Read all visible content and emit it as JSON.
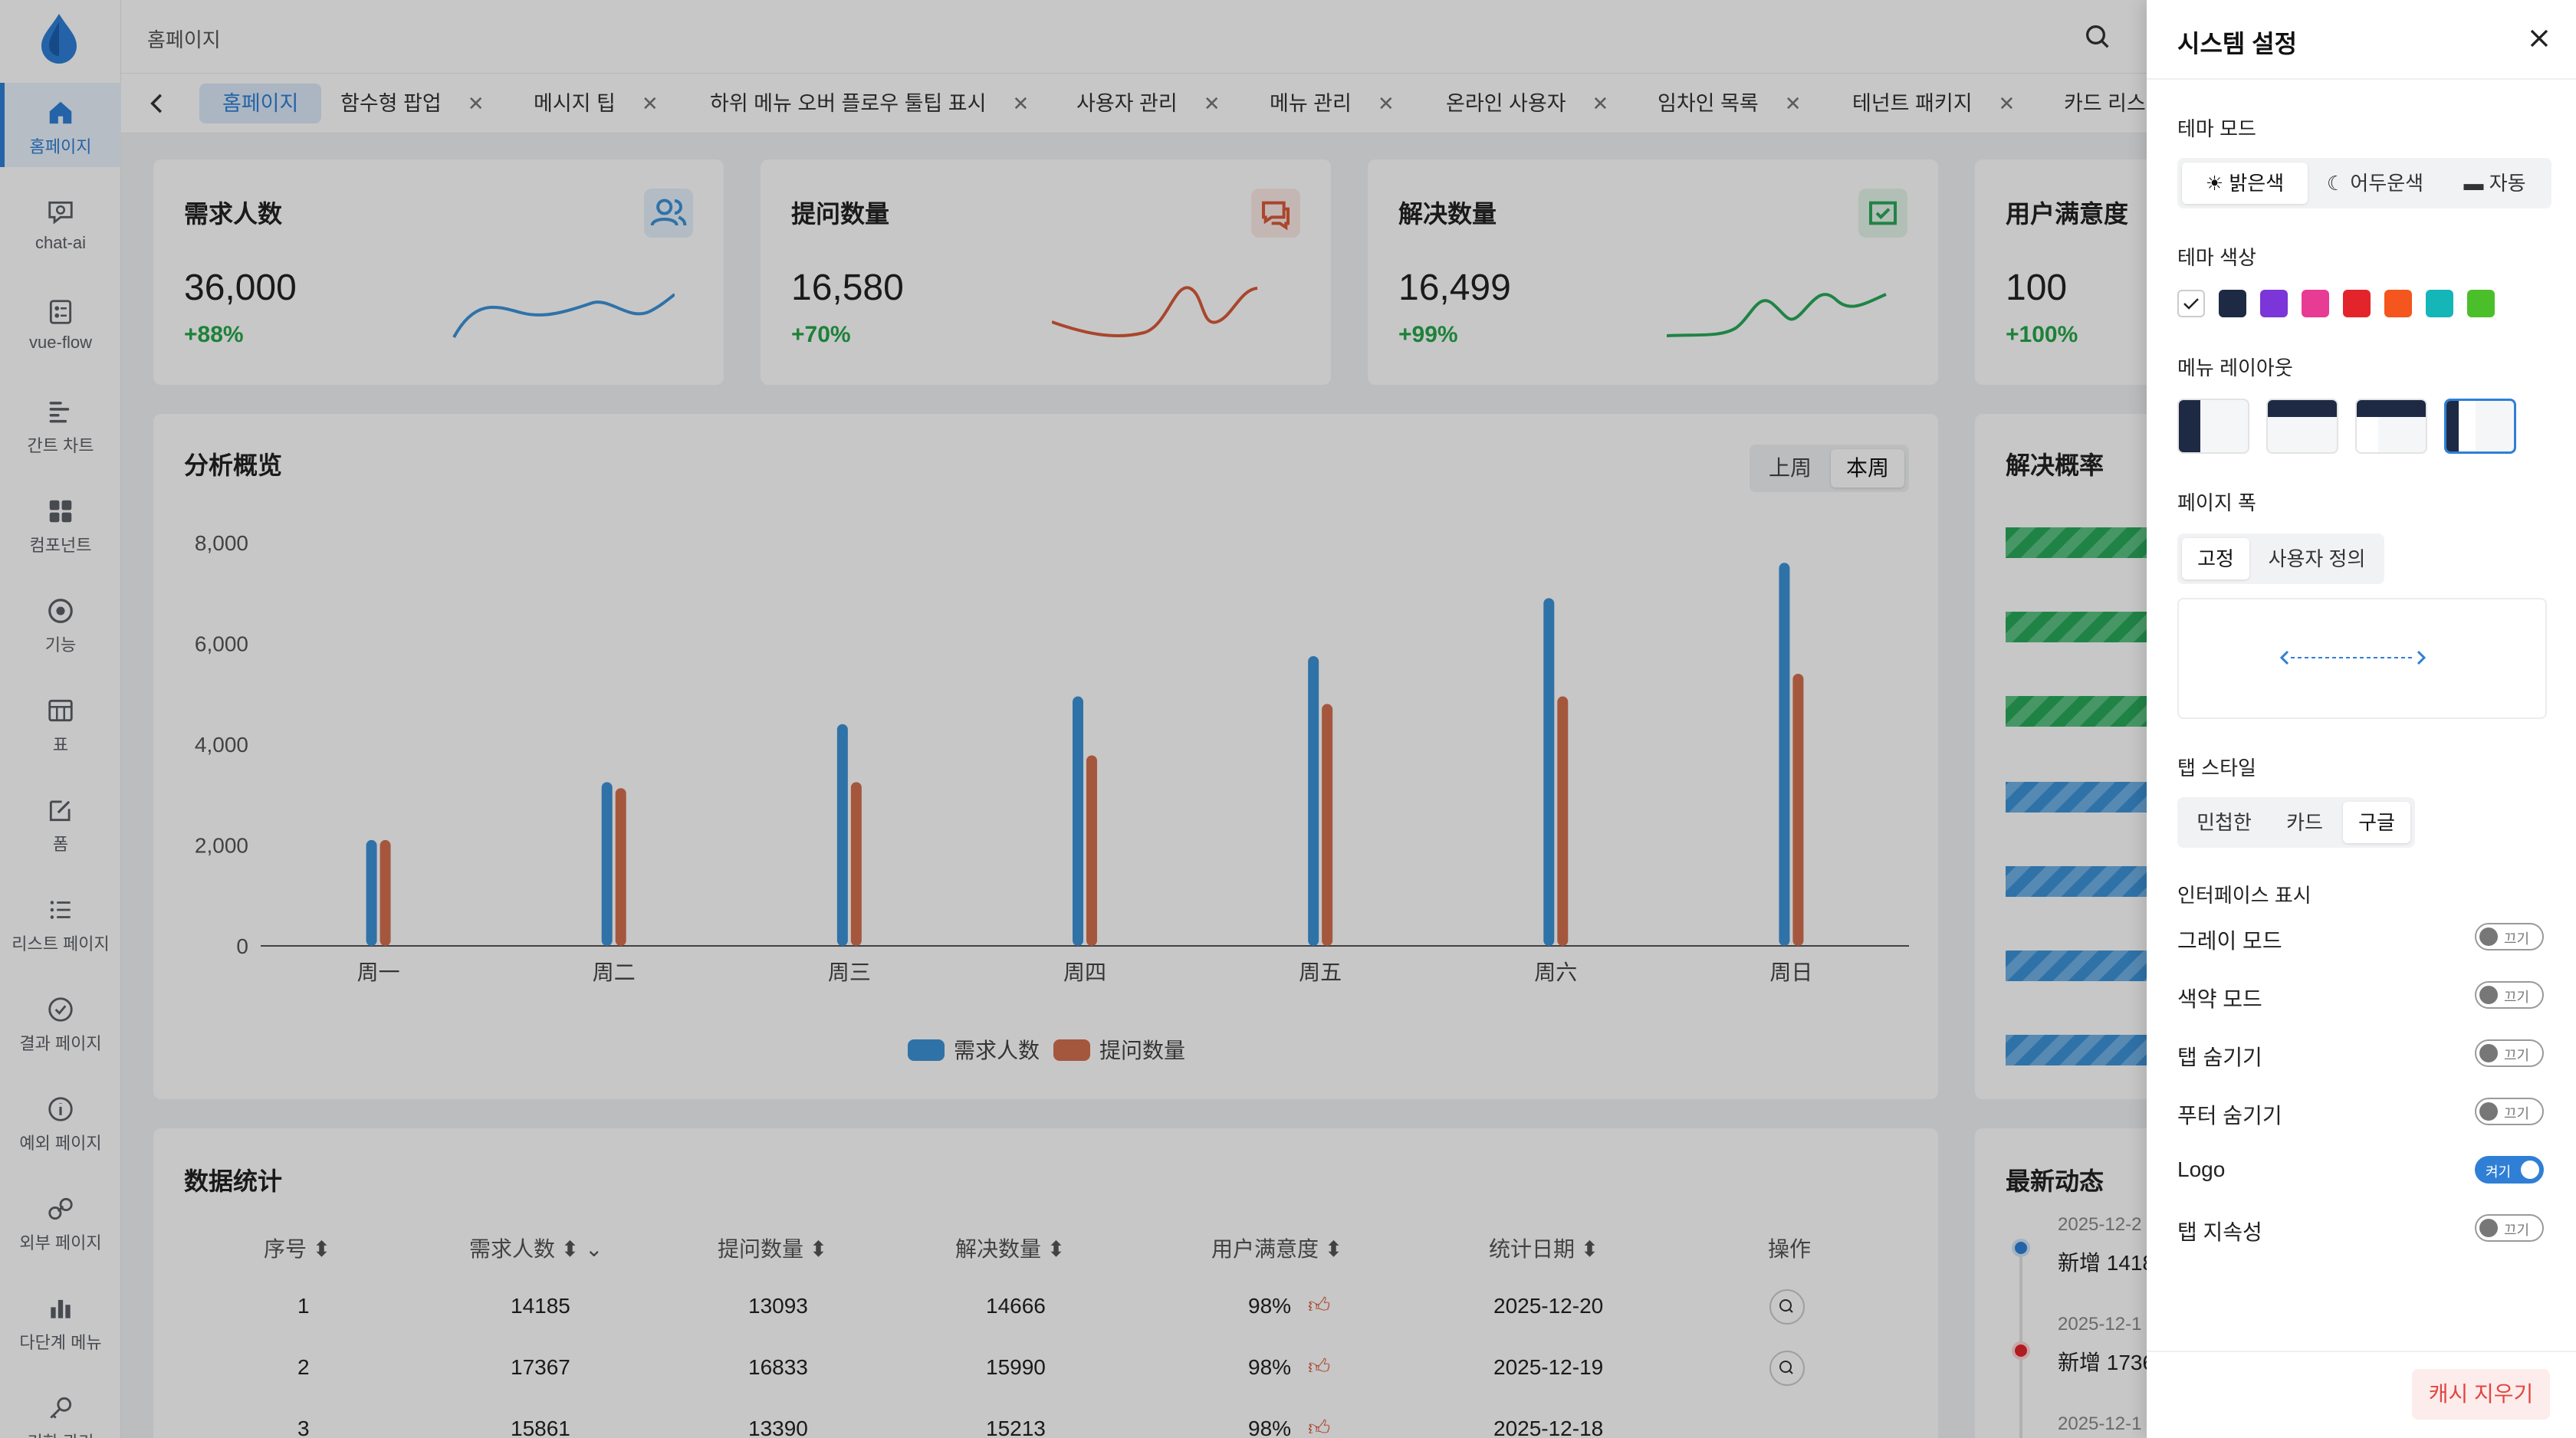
{
  "header": {
    "breadcrumb": "홈페이지"
  },
  "sidebar": {
    "items": [
      {
        "label": "홈페이지",
        "icon": "home-icon"
      },
      {
        "label": "chat-ai",
        "icon": "chat-search-icon"
      },
      {
        "label": "vue-flow",
        "icon": "flow-icon"
      },
      {
        "label": "간트 차트",
        "icon": "gantt-icon"
      },
      {
        "label": "컴포넌트",
        "icon": "grid-icon"
      },
      {
        "label": "기능",
        "icon": "chrome-icon"
      },
      {
        "label": "표",
        "icon": "table-icon"
      },
      {
        "label": "폼",
        "icon": "edit-icon"
      },
      {
        "label": "리스트 페이지",
        "icon": "list-icon"
      },
      {
        "label": "결과 페이지",
        "icon": "check-circle-icon"
      },
      {
        "label": "예외 페이지",
        "icon": "info-icon"
      },
      {
        "label": "외부 페이지",
        "icon": "link-icon"
      },
      {
        "label": "다단계 메뉴",
        "icon": "bar-chart-icon"
      },
      {
        "label": "기한 관리",
        "icon": "key-icon"
      }
    ]
  },
  "tabs": [
    {
      "label": "홈페이지"
    },
    {
      "label": "함수형 팝업"
    },
    {
      "label": "메시지 팁"
    },
    {
      "label": "하위 메뉴 오버 플로우 툴팁 표시"
    },
    {
      "label": "사용자 관리"
    },
    {
      "label": "메뉴 관리"
    },
    {
      "label": "온라인 사용자"
    },
    {
      "label": "임차인 목록"
    },
    {
      "label": "테넌트 패키지"
    },
    {
      "label": "카드 리스"
    }
  ],
  "stats": [
    {
      "title": "需求人数",
      "value": "36,000",
      "change": "+88%",
      "color": "#3d93d8",
      "icon": "users-icon"
    },
    {
      "title": "提问数量",
      "value": "16,580",
      "change": "+70%",
      "color": "#d95a3a",
      "icon": "message-icon"
    },
    {
      "title": "解决数量",
      "value": "16,499",
      "change": "+99%",
      "color": "#2aa85a",
      "icon": "check-screen-icon"
    },
    {
      "title": "用户满意度",
      "value": "100",
      "change": "+100%",
      "color": "#2f7fd6",
      "icon": "smile-icon"
    }
  ],
  "analysis": {
    "title": "分析概览",
    "week_options": [
      "上周",
      "本周"
    ],
    "active_week": "本周"
  },
  "chart_data": {
    "type": "bar",
    "title": "分析概览",
    "categories": [
      "周一",
      "周二",
      "周三",
      "周四",
      "周五",
      "周六",
      "周日"
    ],
    "series": [
      {
        "name": "需求人数",
        "color": "#3d93d8",
        "values": [
          2100,
          3250,
          4400,
          4950,
          5750,
          6900,
          7600
        ]
      },
      {
        "name": "提问数量",
        "color": "#d4704f",
        "values": [
          2100,
          3130,
          3250,
          3780,
          4800,
          4950,
          5400
        ]
      }
    ],
    "ylim": [
      0,
      8000
    ],
    "yticks": [
      "0",
      "2,000",
      "4,000",
      "6,000",
      "8,000"
    ],
    "legend_position": "bottom-center"
  },
  "resolve_rate": {
    "title": "解决概率"
  },
  "data_table": {
    "title": "数据统计",
    "columns": [
      "序号",
      "需求人数",
      "提问数量",
      "解决数量",
      "用户满意度",
      "统计日期",
      "操作"
    ],
    "rows": [
      {
        "id": "1",
        "demand": "14185",
        "questions": "13093",
        "solved": "14666",
        "satisfaction": "98%",
        "date": "2025-12-20"
      },
      {
        "id": "2",
        "demand": "17367",
        "questions": "16833",
        "solved": "15990",
        "satisfaction": "98%",
        "date": "2025-12-19"
      },
      {
        "id": "3",
        "demand": "15861",
        "questions": "13390",
        "solved": "15213",
        "satisfaction": "98%",
        "date": "2025-12-18"
      }
    ]
  },
  "latest": {
    "title": "最新动态",
    "items": [
      {
        "time": "2025-12-2",
        "text": "新增 1418"
      },
      {
        "time": "2025-12-1",
        "text": "新增 1736"
      },
      {
        "time": "2025-12-1",
        "text": ""
      }
    ]
  },
  "settings": {
    "title": "시스템 설정",
    "theme_mode": {
      "label": "테마 모드",
      "options": [
        "밝은색",
        "어두운색",
        "자동"
      ]
    },
    "theme_color": {
      "label": "테마 색상",
      "colors": [
        "#ffffff",
        "#1e2a44",
        "#7b35d8",
        "#e83b93",
        "#e3242b",
        "#f4561d",
        "#14b6b8",
        "#4bbf2a"
      ]
    },
    "menu_layout": {
      "label": "메뉴 레이아웃"
    },
    "page_width": {
      "label": "페이지 폭",
      "options": [
        "고정",
        "사용자 정의"
      ]
    },
    "tab_style": {
      "label": "탭 스타일",
      "options": [
        "민첩한",
        "카드",
        "구글"
      ]
    },
    "interface": {
      "label": "인터페이스 표시",
      "toggles": [
        {
          "label": "그레이 모드",
          "state": "끄기"
        },
        {
          "label": "색약 모드",
          "state": "끄기"
        },
        {
          "label": "탭 숨기기",
          "state": "끄기"
        },
        {
          "label": "푸터 숨기기",
          "state": "끄기"
        },
        {
          "label": "Logo",
          "state": "켜기"
        },
        {
          "label": "탭 지속성",
          "state": "끄기"
        }
      ]
    },
    "clear_cache": "캐시 지우기"
  }
}
